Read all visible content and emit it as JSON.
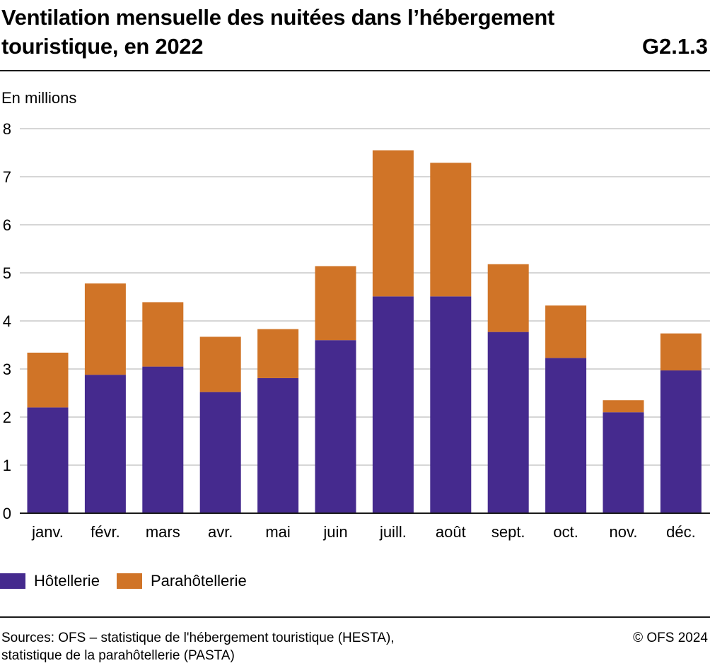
{
  "header": {
    "title": "Ventilation mensuelle des nuitées dans l’hébergement touristique, en 2022",
    "code": "G2.1.3"
  },
  "chart_data": {
    "type": "bar",
    "stacked": true,
    "title": "Ventilation mensuelle des nuitées dans l’hébergement touristique, en 2022",
    "ylabel": "En millions",
    "ylim": [
      0,
      8
    ],
    "yticks": [
      "0",
      "1",
      "2",
      "3",
      "4",
      "5",
      "6",
      "7",
      "8"
    ],
    "grid": true,
    "legend_position": "bottom-left",
    "categories": [
      "janv.",
      "févr.",
      "mars",
      "avr.",
      "mai",
      "juin",
      "juill.",
      "août",
      "sept.",
      "oct.",
      "nov.",
      "déc."
    ],
    "series": [
      {
        "name": "Hôtellerie",
        "color": "#452a8e",
        "values": [
          2.2,
          2.88,
          3.05,
          2.52,
          2.81,
          3.6,
          4.51,
          4.51,
          3.77,
          3.23,
          2.1,
          2.97
        ]
      },
      {
        "name": "Parahôtellerie",
        "color": "#d07427",
        "values": [
          1.14,
          1.9,
          1.34,
          1.15,
          1.02,
          1.54,
          3.04,
          2.78,
          1.41,
          1.09,
          0.25,
          0.77
        ]
      }
    ]
  },
  "footer": {
    "source_line1": "Sources: OFS – statistique de l'hébergement touristique (HESTA),",
    "source_line2": "statistique de la parahôtellerie (PASTA)",
    "copyright": "© OFS 2024"
  }
}
